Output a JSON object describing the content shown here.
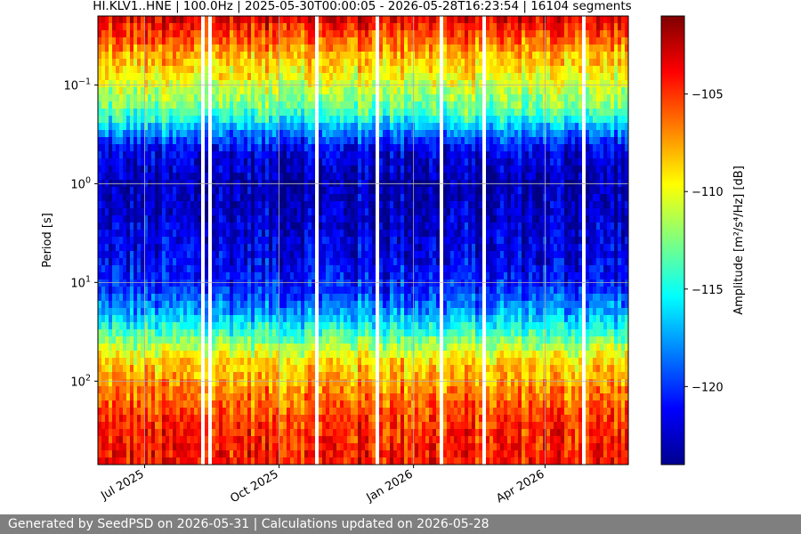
{
  "chart_data": {
    "type": "heatmap",
    "title": "HI.KLV1..HNE | 100.0Hz | 2025-05-30T00:00:05 - 2026-05-28T16:23:54 | 16104 segments",
    "ylabel": "Period [s]",
    "y_scale": "log",
    "y_inverted": true,
    "ylim": [
      0.02,
      700
    ],
    "xlim": [
      "2025-05-30",
      "2026-05-28"
    ],
    "x_ticks": [
      {
        "date": "2025-07-01",
        "label": "Jul 2025"
      },
      {
        "date": "2025-10-01",
        "label": "Oct 2025"
      },
      {
        "date": "2026-01-01",
        "label": "Jan 2026"
      },
      {
        "date": "2026-04-01",
        "label": "Apr 2026"
      }
    ],
    "y_ticks": [
      {
        "value": 0.1,
        "label": "10",
        "exp": "−1"
      },
      {
        "value": 1,
        "label": "10",
        "exp": "0"
      },
      {
        "value": 10,
        "label": "10",
        "exp": "1"
      },
      {
        "value": 100,
        "label": "10",
        "exp": "2"
      }
    ],
    "grid": true,
    "colormap": "jet",
    "colorbar": {
      "label": "Amplitude [m²/s⁴/Hz] [dB]",
      "range": [
        -124,
        -101
      ],
      "ticks": [
        {
          "value": -105,
          "label": "−105"
        },
        {
          "value": -110,
          "label": "−110"
        },
        {
          "value": -115,
          "label": "−115"
        },
        {
          "value": -120,
          "label": "−120"
        }
      ]
    },
    "period_profile": [
      {
        "period": 0.02,
        "db": -103
      },
      {
        "period": 0.05,
        "db": -108
      },
      {
        "period": 0.1,
        "db": -110.5
      },
      {
        "period": 0.2,
        "db": -114
      },
      {
        "period": 0.3,
        "db": -118
      },
      {
        "period": 0.45,
        "db": -121.5
      },
      {
        "period": 1,
        "db": -123
      },
      {
        "period": 3,
        "db": -122
      },
      {
        "period": 6,
        "db": -121.5
      },
      {
        "period": 12,
        "db": -120
      },
      {
        "period": 20,
        "db": -117.5
      },
      {
        "period": 35,
        "db": -113.5
      },
      {
        "period": 60,
        "db": -109
      },
      {
        "period": 120,
        "db": -107
      },
      {
        "period": 250,
        "db": -105
      },
      {
        "period": 700,
        "db": -104
      }
    ]
  },
  "footer": {
    "text": "Generated by SeedPSD on 2026-05-31 | Calculations updated on 2026-05-28"
  }
}
